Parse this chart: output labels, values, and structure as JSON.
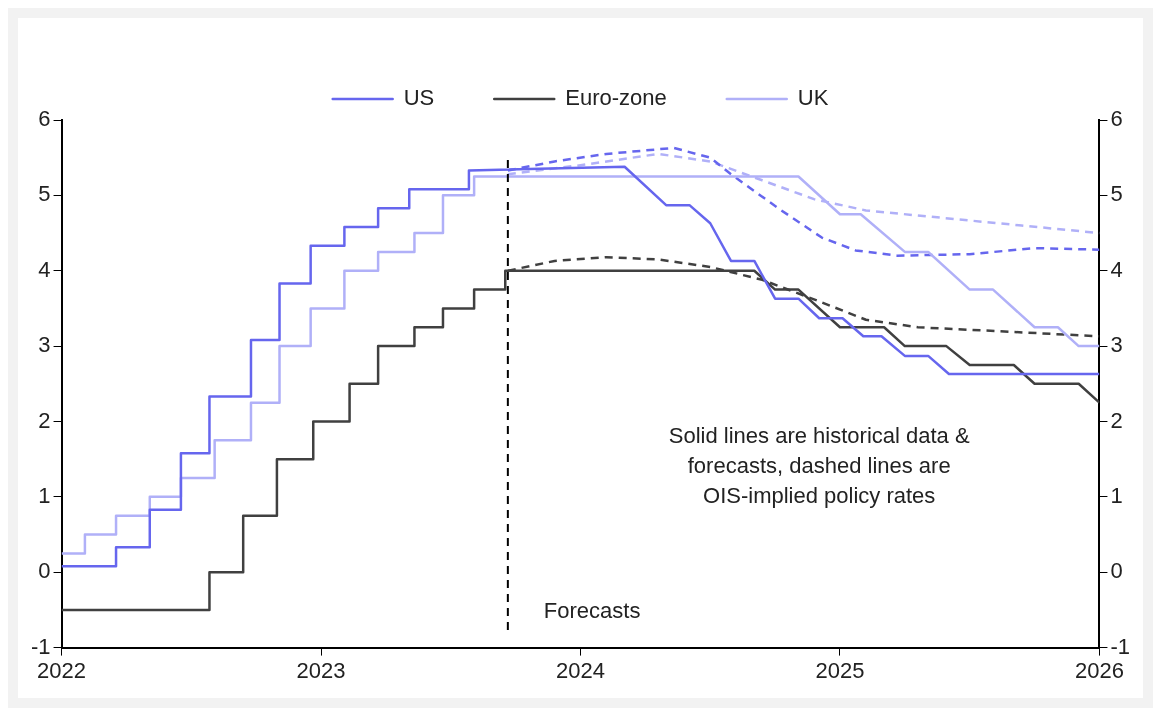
{
  "chart_data": {
    "type": "line",
    "xlim": [
      2022,
      2026
    ],
    "xticks": [
      2022,
      2023,
      2024,
      2025,
      2026
    ],
    "ylim": [
      -1,
      6
    ],
    "yticks": [
      -1,
      0,
      1,
      2,
      3,
      4,
      5,
      6
    ],
    "y2lim": [
      -1,
      6
    ],
    "y2ticks": [
      -1,
      0,
      1,
      2,
      3,
      4,
      5,
      6
    ],
    "grid": false,
    "legend": "top",
    "marker": "none",
    "series": [
      {
        "name": "US",
        "color": "#6666ee",
        "line_style": "solid",
        "x": [
          2022,
          2022.21,
          2022.21,
          2022.34,
          2022.34,
          2022.46,
          2022.46,
          2022.57,
          2022.57,
          2022.73,
          2022.73,
          2022.84,
          2022.84,
          2022.96,
          2022.96,
          2023.09,
          2023.09,
          2023.22,
          2023.22,
          2023.34,
          2023.34,
          2023.57,
          2023.57,
          2024.17,
          2024.33,
          2024.42,
          2024.5,
          2024.58,
          2024.67,
          2024.75,
          2024.84,
          2024.92,
          2025.01,
          2025.09,
          2025.16,
          2025.25,
          2025.34,
          2025.42,
          2026
        ],
        "values": [
          0.08,
          0.08,
          0.33,
          0.33,
          0.83,
          0.83,
          1.58,
          1.58,
          2.33,
          2.33,
          3.08,
          3.08,
          3.83,
          3.83,
          4.33,
          4.33,
          4.58,
          4.58,
          4.83,
          4.83,
          5.08,
          5.08,
          5.33,
          5.38,
          4.87,
          4.87,
          4.63,
          4.13,
          4.13,
          3.63,
          3.63,
          3.37,
          3.37,
          3.13,
          3.13,
          2.87,
          2.87,
          2.63,
          2.63
        ]
      },
      {
        "name": "Euro-zone",
        "color": "#404040",
        "line_style": "solid",
        "x": [
          2022,
          2022.57,
          2022.57,
          2022.7,
          2022.7,
          2022.83,
          2022.83,
          2022.97,
          2022.97,
          2023.11,
          2023.11,
          2023.22,
          2023.22,
          2023.36,
          2023.36,
          2023.47,
          2023.47,
          2023.59,
          2023.59,
          2023.71,
          2023.71,
          2024.67,
          2024.75,
          2024.84,
          2025,
          2025.17,
          2025.25,
          2025.41,
          2025.5,
          2025.67,
          2025.75,
          2025.92,
          2026
        ],
        "values": [
          -0.5,
          -0.5,
          0,
          0,
          0.75,
          0.75,
          1.5,
          1.5,
          2,
          2,
          2.5,
          2.5,
          3,
          3,
          3.25,
          3.25,
          3.5,
          3.5,
          3.75,
          3.75,
          4,
          4,
          3.75,
          3.75,
          3.25,
          3.25,
          3,
          3,
          2.75,
          2.75,
          2.5,
          2.5,
          2.25
        ]
      },
      {
        "name": "UK",
        "color": "#b0b0f8",
        "line_style": "solid",
        "x": [
          2022,
          2022.09,
          2022.09,
          2022.21,
          2022.21,
          2022.34,
          2022.34,
          2022.46,
          2022.46,
          2022.59,
          2022.59,
          2022.73,
          2022.73,
          2022.84,
          2022.84,
          2022.96,
          2022.96,
          2023.09,
          2023.09,
          2023.22,
          2023.22,
          2023.36,
          2023.36,
          2023.47,
          2023.47,
          2023.59,
          2023.59,
          2024.84,
          2025,
          2025.08,
          2025.25,
          2025.34,
          2025.5,
          2025.59,
          2025.75,
          2025.84,
          2025.92,
          2026
        ],
        "values": [
          0.25,
          0.25,
          0.5,
          0.5,
          0.75,
          0.75,
          1,
          1,
          1.25,
          1.25,
          1.75,
          1.75,
          2.25,
          2.25,
          3,
          3,
          3.5,
          3.5,
          4,
          4,
          4.25,
          4.25,
          4.5,
          4.5,
          5,
          5,
          5.25,
          5.25,
          4.75,
          4.75,
          4.25,
          4.25,
          3.75,
          3.75,
          3.25,
          3.25,
          3,
          3
        ]
      },
      {
        "color": "#6666ee",
        "line_style": "dashed",
        "x": [
          2023.72,
          2023.9,
          2024.1,
          2024.36,
          2024.5,
          2024.58,
          2024.77,
          2024.93,
          2025.06,
          2025.22,
          2025.5,
          2025.75,
          2026
        ],
        "values": [
          5.33,
          5.45,
          5.55,
          5.63,
          5.5,
          5.28,
          4.81,
          4.44,
          4.27,
          4.2,
          4.22,
          4.3,
          4.28
        ]
      },
      {
        "color": "#b0b0f8",
        "line_style": "dashed",
        "x": [
          2023.72,
          2024,
          2024.3,
          2024.5,
          2024.7,
          2024.9,
          2025.1,
          2025.4,
          2025.7,
          2026
        ],
        "values": [
          5.28,
          5.4,
          5.55,
          5.45,
          5.2,
          4.95,
          4.8,
          4.7,
          4.6,
          4.5
        ]
      },
      {
        "color": "#404040",
        "line_style": "dashed",
        "x": [
          2023.72,
          2023.9,
          2024.1,
          2024.3,
          2024.5,
          2024.7,
          2024.9,
          2025.1,
          2025.3,
          2025.6,
          2026
        ],
        "values": [
          4,
          4.13,
          4.18,
          4.15,
          4.05,
          3.88,
          3.62,
          3.35,
          3.25,
          3.2,
          3.13
        ]
      }
    ],
    "ref_lines": [
      {
        "axis": "x",
        "value": 2023.72,
        "label": "Forecasts",
        "color": "#000000",
        "line_style": "dashed"
      }
    ],
    "annotations": [
      "Solid lines are historical data & forecasts, dashed lines are OIS-implied policy rates"
    ]
  }
}
